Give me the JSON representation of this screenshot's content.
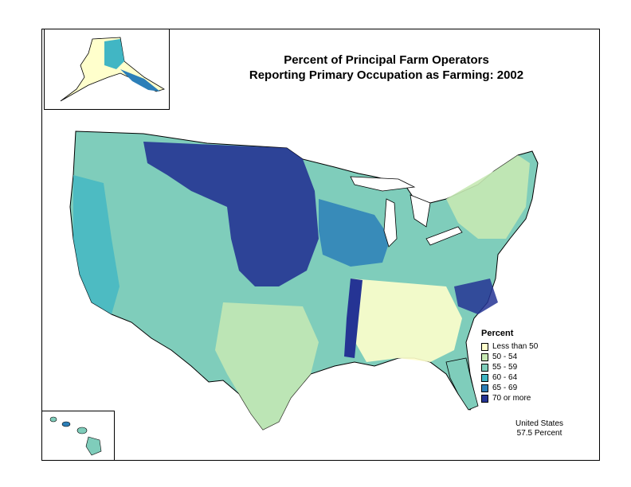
{
  "title": {
    "line1": "Percent of Principal Farm Operators",
    "line2": "Reporting Primary Occupation as Farming:  2002"
  },
  "legend": {
    "title": "Percent",
    "items": [
      {
        "label": "Less than 50",
        "color": "#ffffcc"
      },
      {
        "label": "50 - 54",
        "color": "#c7e9b4"
      },
      {
        "label": "55 - 59",
        "color": "#7fcdbb"
      },
      {
        "label": "60 - 64",
        "color": "#41b6c4"
      },
      {
        "label": "65 - 69",
        "color": "#2c7fb8"
      },
      {
        "label": "70 or more",
        "color": "#253494"
      }
    ]
  },
  "note": {
    "line1": "United States",
    "line2": "57.5 Percent"
  }
}
